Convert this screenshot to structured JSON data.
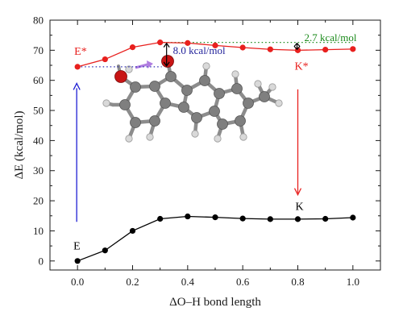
{
  "chart_data": {
    "type": "line",
    "xlabel": "ΔO–H bond length",
    "ylabel": "ΔE (kcal/mol)",
    "xlim": [
      -0.1,
      1.1
    ],
    "ylim": [
      -3,
      80
    ],
    "x_ticks": [
      0.0,
      0.2,
      0.4,
      0.6,
      0.8,
      1.0
    ],
    "x_tick_labels": [
      "0.0",
      "0.2",
      "0.4",
      "0.6",
      "0.8",
      "1.0"
    ],
    "y_ticks": [
      0,
      10,
      20,
      30,
      40,
      50,
      60,
      70,
      80
    ],
    "y_tick_labels": [
      "0",
      "10",
      "20",
      "30",
      "40",
      "50",
      "60",
      "70",
      "80"
    ],
    "series": [
      {
        "color": "#e8201e",
        "x": [
          0.0,
          0.1,
          0.2,
          0.3,
          0.4,
          0.5,
          0.6,
          0.7,
          0.8,
          0.9,
          1.0
        ],
        "y": [
          64.5,
          67.0,
          71.0,
          72.6,
          72.4,
          71.6,
          70.9,
          70.3,
          70.0,
          70.2,
          70.4
        ]
      },
      {
        "color": "#000000",
        "x": [
          0.0,
          0.1,
          0.2,
          0.3,
          0.4,
          0.5,
          0.6,
          0.7,
          0.8,
          0.9,
          1.0
        ],
        "y": [
          0.0,
          3.5,
          10.0,
          14.0,
          14.8,
          14.5,
          14.1,
          13.9,
          13.9,
          14.0,
          14.4
        ]
      }
    ],
    "state_labels": {
      "e_star": "E*",
      "k_star": "K*",
      "e": "E",
      "k": "K"
    },
    "annotations": {
      "gap_left": "8.0 kcal/mol",
      "gap_right": "2.7 kcal/mol"
    },
    "colors": {
      "excited": "#e8201e",
      "ground": "#000000",
      "absorption_arrow": "#1f1fd4",
      "gap_left_text": "#1f1f99",
      "gap_right_text": "#1a8a1a",
      "green_dots": "#1a8a1a",
      "blue_dots": "#2a2ab0",
      "emission_arrow": "#e8201e"
    }
  }
}
